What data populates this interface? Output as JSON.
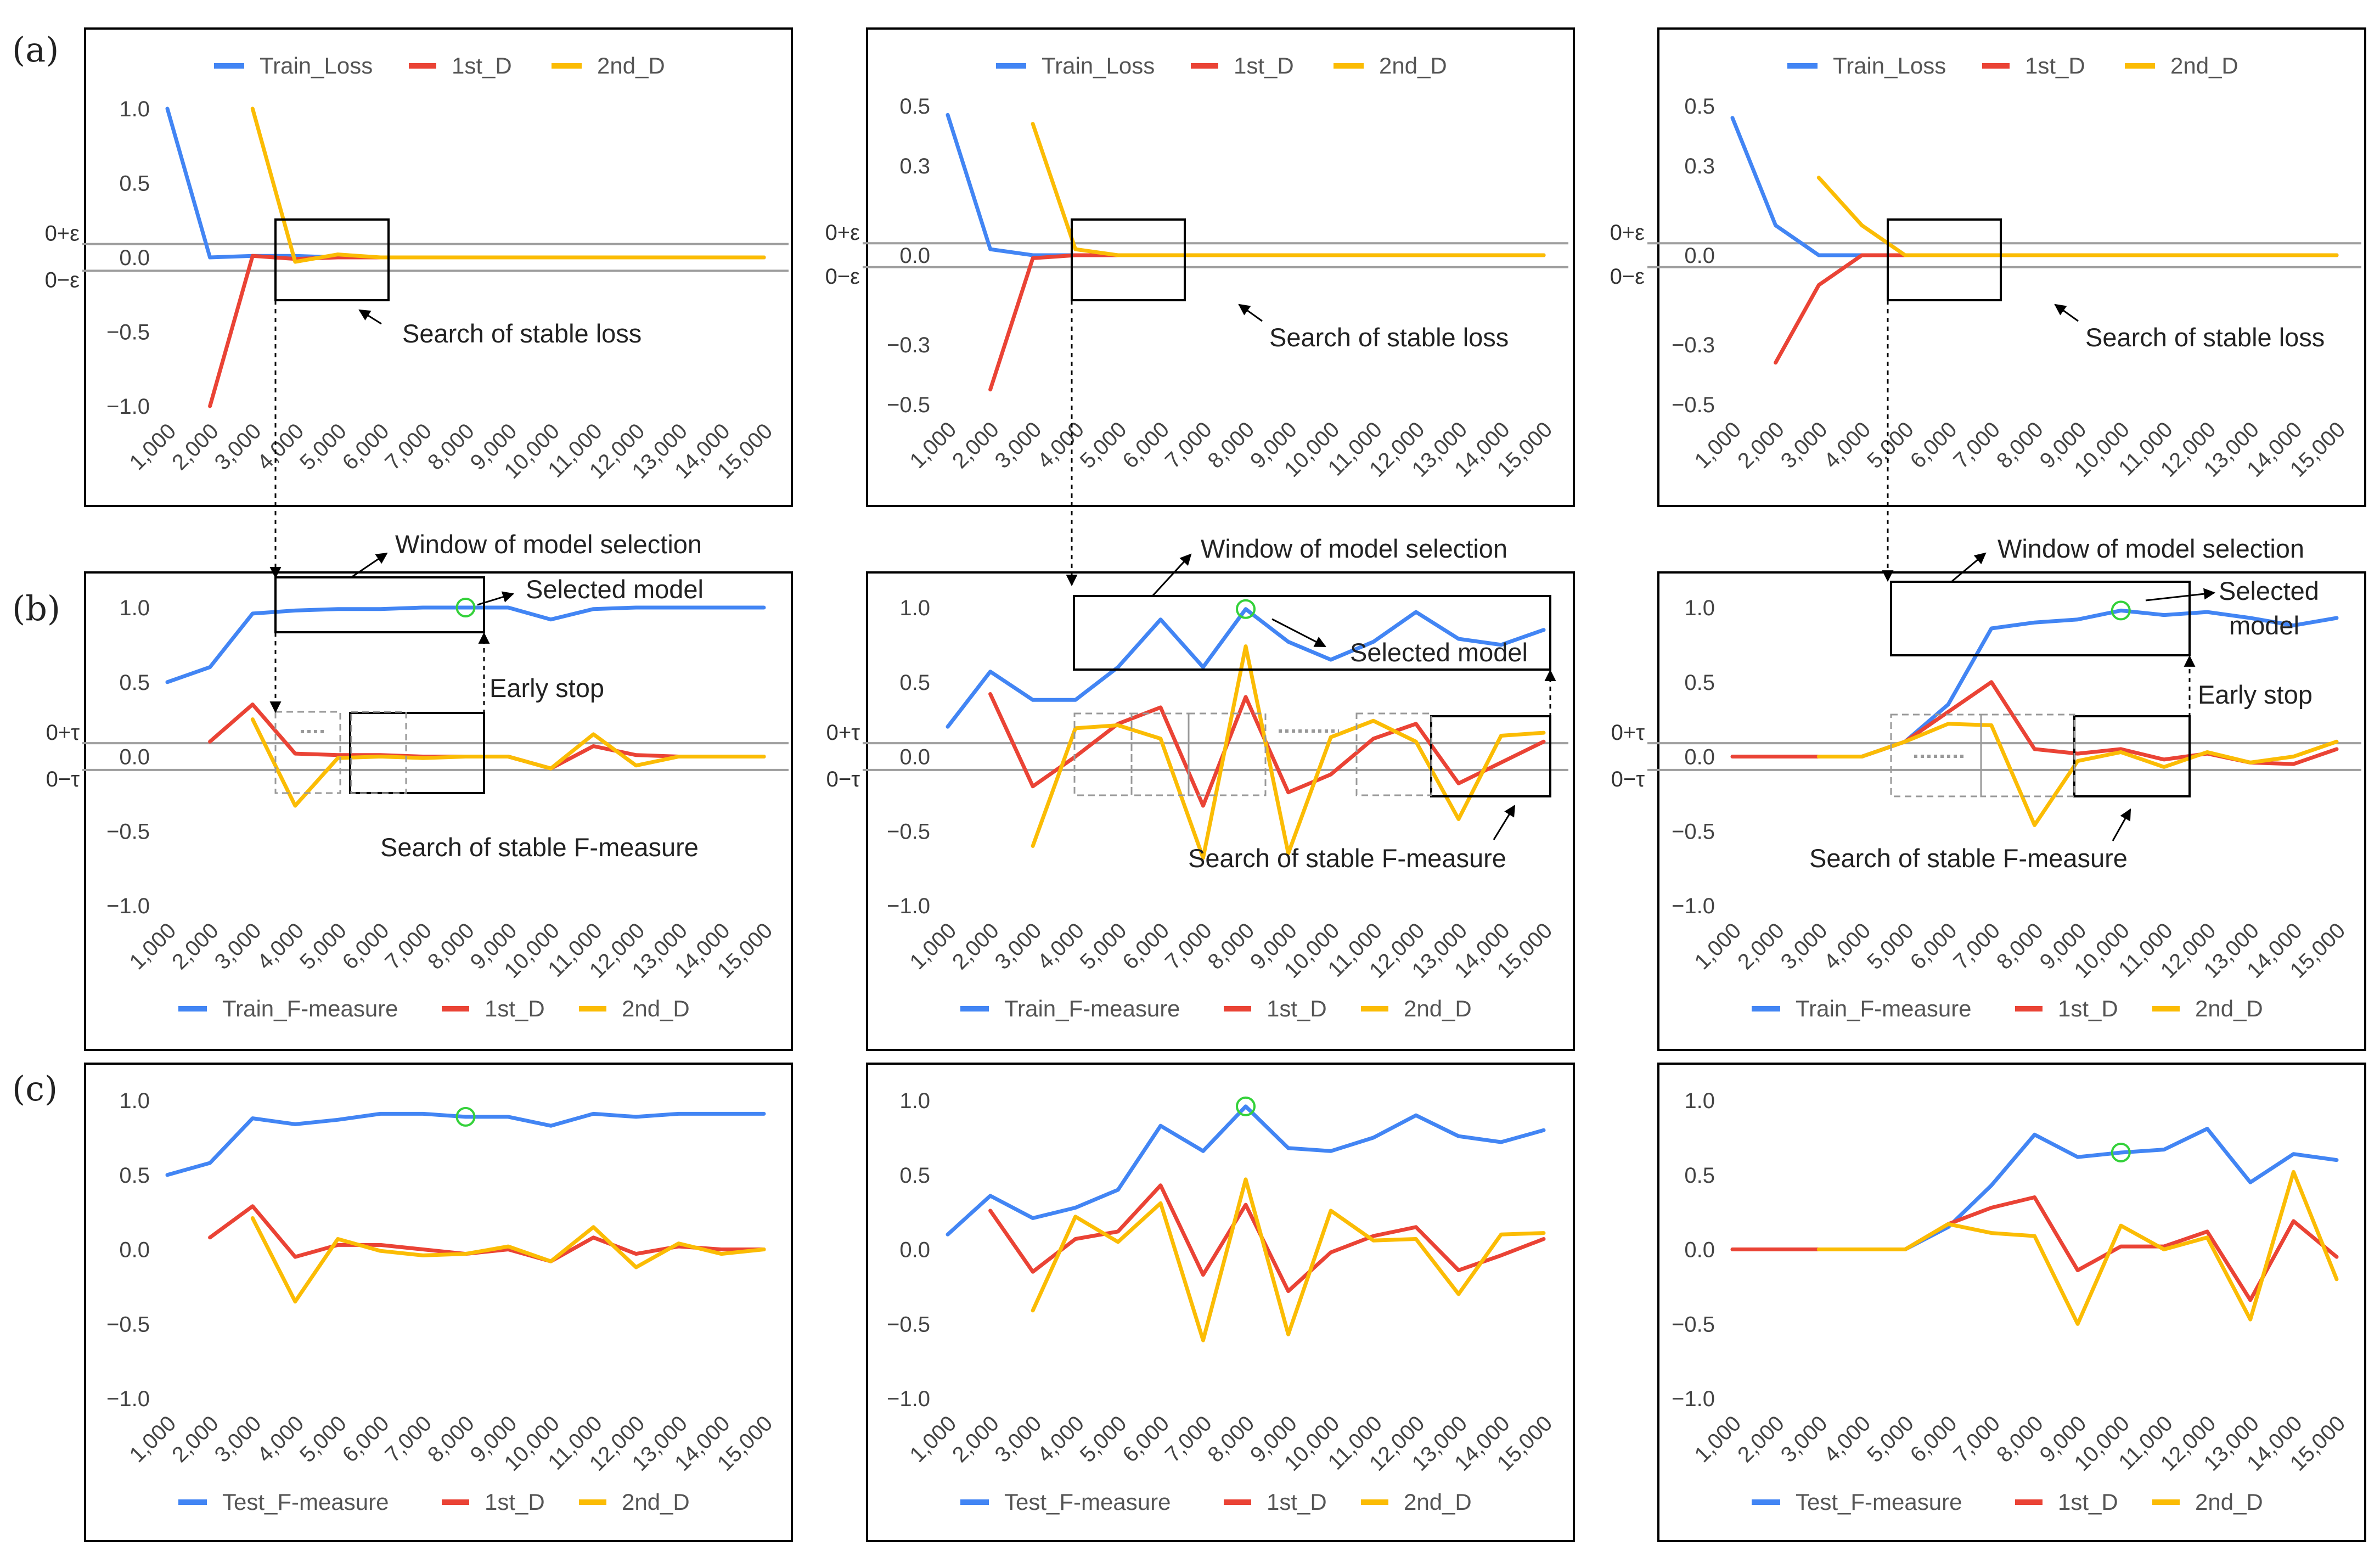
{
  "figure": {
    "colors": {
      "train": "#4285f4",
      "first": "#ea4335",
      "second": "#fbbc04",
      "threshold": "#9e9e9e",
      "selected": "#34d13a"
    },
    "x_categories": [
      "1,000",
      "2,000",
      "3,000",
      "4,000",
      "5,000",
      "6,000",
      "7,000",
      "8,000",
      "9,000",
      "10,000",
      "11,000",
      "12,000",
      "13,000",
      "14,000",
      "15,000"
    ],
    "row_labels": [
      "(a)",
      "(b)",
      "(c)"
    ],
    "threshold_labels": {
      "loss_upper": "0+ε",
      "loss_lower": "0−ε",
      "f_upper": "0+τ",
      "f_lower": "0−τ"
    },
    "annotations": {
      "search_stable_loss": "Search of stable loss",
      "window_model_selection": "Window of model selection",
      "selected_model": "Selected model",
      "early_stop": "Early stop",
      "search_stable_f": "Search of stable F-measure"
    }
  },
  "chart_data": [
    {
      "id": "a1",
      "type": "line",
      "row": "a",
      "col": 0,
      "y_ticks": [
        1.0,
        0.5,
        0.0,
        -0.5,
        -1.0
      ],
      "y_tick_labels": [
        "1.0",
        "0.5",
        "0.0",
        "−0.5",
        "−1.0"
      ],
      "ylim": [
        -1.0,
        1.0
      ],
      "threshold": 0.09,
      "legend": [
        "Train_Loss",
        "1st_D",
        "2nd_D"
      ],
      "legend_position": "top",
      "series": [
        {
          "name": "Train_Loss",
          "values": [
            1.0,
            0.0,
            0.01,
            0.01,
            0.0,
            0.0,
            0.0,
            0.0,
            0.0,
            0.0,
            0.0,
            0.0,
            0.0,
            0.0,
            0.0
          ]
        },
        {
          "name": "1st_D",
          "values": [
            null,
            -1.0,
            0.01,
            -0.01,
            0.0,
            0.0,
            0.0,
            0.0,
            0.0,
            0.0,
            0.0,
            0.0,
            0.0,
            0.0,
            0.0
          ]
        },
        {
          "name": "2nd_D",
          "values": [
            null,
            null,
            1.0,
            -0.03,
            0.02,
            0.0,
            0.0,
            0.0,
            0.0,
            0.0,
            0.0,
            0.0,
            0.0,
            0.0,
            0.0
          ]
        }
      ]
    },
    {
      "id": "a2",
      "type": "line",
      "row": "a",
      "col": 1,
      "y_ticks": [
        0.5,
        0.3,
        0.0,
        -0.3,
        -0.5
      ],
      "y_tick_labels": [
        "0.5",
        "0.3",
        "0.0",
        "−0.3",
        "−0.5"
      ],
      "ylim": [
        -0.5,
        0.5
      ],
      "threshold": 0.04,
      "legend": [
        "Train_Loss",
        "1st_D",
        "2nd_D"
      ],
      "legend_position": "top",
      "series": [
        {
          "name": "Train_Loss",
          "values": [
            0.47,
            0.02,
            0.0,
            0.0,
            0.0,
            0.0,
            0.0,
            0.0,
            0.0,
            0.0,
            0.0,
            0.0,
            0.0,
            0.0,
            0.0
          ]
        },
        {
          "name": "1st_D",
          "values": [
            null,
            -0.45,
            -0.01,
            0.0,
            0.0,
            0.0,
            0.0,
            0.0,
            0.0,
            0.0,
            0.0,
            0.0,
            0.0,
            0.0,
            0.0
          ]
        },
        {
          "name": "2nd_D",
          "values": [
            null,
            null,
            0.44,
            0.02,
            0.0,
            0.0,
            0.0,
            0.0,
            0.0,
            0.0,
            0.0,
            0.0,
            0.0,
            0.0,
            0.0
          ]
        }
      ]
    },
    {
      "id": "a3",
      "type": "line",
      "row": "a",
      "col": 2,
      "y_ticks": [
        0.5,
        0.3,
        0.0,
        -0.3,
        -0.5
      ],
      "y_tick_labels": [
        "0.5",
        "0.3",
        "0.0",
        "−0.3",
        "−0.5"
      ],
      "ylim": [
        -0.5,
        0.5
      ],
      "threshold": 0.04,
      "legend": [
        "Train_Loss",
        "1st_D",
        "2nd_D"
      ],
      "legend_position": "top",
      "series": [
        {
          "name": "Train_Loss",
          "values": [
            0.46,
            0.1,
            0.0,
            0.0,
            0.0,
            0.0,
            0.0,
            0.0,
            0.0,
            0.0,
            0.0,
            0.0,
            0.0,
            0.0,
            0.0
          ]
        },
        {
          "name": "1st_D",
          "values": [
            null,
            -0.36,
            -0.1,
            0.0,
            0.0,
            0.0,
            0.0,
            0.0,
            0.0,
            0.0,
            0.0,
            0.0,
            0.0,
            0.0,
            0.0
          ]
        },
        {
          "name": "2nd_D",
          "values": [
            null,
            null,
            0.26,
            0.1,
            0.0,
            0.0,
            0.0,
            0.0,
            0.0,
            0.0,
            0.0,
            0.0,
            0.0,
            0.0,
            0.0
          ]
        }
      ]
    },
    {
      "id": "b1",
      "type": "line",
      "row": "b",
      "col": 0,
      "y_ticks": [
        1.0,
        0.5,
        0.0,
        -0.5,
        -1.0
      ],
      "y_tick_labels": [
        "1.0",
        "0.5",
        "0.0",
        "−0.5",
        "−1.0"
      ],
      "ylim": [
        -1.0,
        1.0
      ],
      "threshold": 0.09,
      "legend": [
        "Train_F-measure",
        "1st_D",
        "2nd_D"
      ],
      "legend_position": "bottom",
      "selected_index": 7,
      "series": [
        {
          "name": "Train_F-measure",
          "values": [
            0.5,
            0.6,
            0.96,
            0.98,
            0.99,
            0.99,
            1.0,
            1.0,
            1.0,
            0.92,
            0.99,
            1.0,
            1.0,
            1.0,
            1.0
          ]
        },
        {
          "name": "1st_D",
          "values": [
            null,
            0.1,
            0.35,
            0.02,
            0.01,
            0.01,
            0.0,
            0.0,
            0.0,
            -0.08,
            0.07,
            0.01,
            0.0,
            0.0,
            0.0
          ]
        },
        {
          "name": "2nd_D",
          "values": [
            null,
            null,
            0.25,
            -0.33,
            -0.01,
            0.0,
            -0.01,
            0.0,
            0.0,
            -0.08,
            0.15,
            -0.06,
            0.0,
            0.0,
            0.0
          ]
        }
      ]
    },
    {
      "id": "b2",
      "type": "line",
      "row": "b",
      "col": 1,
      "y_ticks": [
        1.0,
        0.5,
        0.0,
        -0.5,
        -1.0
      ],
      "y_tick_labels": [
        "1.0",
        "0.5",
        "0.0",
        "−0.5",
        "−1.0"
      ],
      "ylim": [
        -1.0,
        1.0
      ],
      "threshold": 0.09,
      "legend": [
        "Train_F-measure",
        "1st_D",
        "2nd_D"
      ],
      "legend_position": "bottom",
      "selected_index": 7,
      "series": [
        {
          "name": "Train_F-measure",
          "values": [
            0.2,
            0.57,
            0.38,
            0.38,
            0.6,
            0.92,
            0.6,
            0.99,
            0.77,
            0.65,
            0.77,
            0.97,
            0.79,
            0.75,
            0.85
          ]
        },
        {
          "name": "1st_D",
          "values": [
            null,
            0.42,
            -0.2,
            0.0,
            0.22,
            0.33,
            -0.33,
            0.4,
            -0.24,
            -0.12,
            0.12,
            0.22,
            -0.18,
            -0.04,
            0.1
          ]
        },
        {
          "name": "2nd_D",
          "values": [
            null,
            null,
            -0.6,
            0.19,
            0.21,
            0.12,
            -0.68,
            0.74,
            -0.65,
            0.13,
            0.24,
            0.1,
            -0.42,
            0.14,
            0.16
          ]
        }
      ]
    },
    {
      "id": "b3",
      "type": "line",
      "row": "b",
      "col": 2,
      "y_ticks": [
        1.0,
        0.5,
        0.0,
        -0.5,
        -1.0
      ],
      "y_tick_labels": [
        "1.0",
        "0.5",
        "0.0",
        "−0.5",
        "−1.0"
      ],
      "ylim": [
        -1.0,
        1.0
      ],
      "threshold": 0.09,
      "legend": [
        "Train_F-measure",
        "1st_D",
        "2nd_D"
      ],
      "legend_position": "bottom",
      "selected_index": 9,
      "series": [
        {
          "name": "Train_F-measure",
          "values": [
            0.0,
            0.0,
            0.0,
            0.0,
            0.1,
            0.35,
            0.86,
            0.9,
            0.92,
            0.98,
            0.95,
            0.97,
            0.93,
            0.88,
            0.93
          ]
        },
        {
          "name": "1st_D",
          "values": [
            0.0,
            0.0,
            0.0,
            0.0,
            0.1,
            0.3,
            0.5,
            0.05,
            0.02,
            0.05,
            -0.02,
            0.02,
            -0.04,
            -0.05,
            0.05
          ]
        },
        {
          "name": "2nd_D",
          "values": [
            null,
            null,
            0.0,
            0.0,
            0.1,
            0.22,
            0.21,
            -0.46,
            -0.03,
            0.03,
            -0.07,
            0.03,
            -0.04,
            0.0,
            0.1
          ]
        }
      ]
    },
    {
      "id": "c1",
      "type": "line",
      "row": "c",
      "col": 0,
      "y_ticks": [
        1.0,
        0.5,
        0.0,
        -0.5,
        -1.0
      ],
      "y_tick_labels": [
        "1.0",
        "0.5",
        "0.0",
        "−0.5",
        "−1.0"
      ],
      "ylim": [
        -1.0,
        1.0
      ],
      "threshold": null,
      "legend": [
        "Test_F-measure",
        "1st_D",
        "2nd_D"
      ],
      "legend_position": "bottom",
      "selected_index": 7,
      "series": [
        {
          "name": "Test_F-measure",
          "values": [
            0.5,
            0.58,
            0.88,
            0.84,
            0.87,
            0.91,
            0.91,
            0.89,
            0.89,
            0.83,
            0.91,
            0.89,
            0.91,
            0.91,
            0.91
          ]
        },
        {
          "name": "1st_D",
          "values": [
            null,
            0.08,
            0.29,
            -0.05,
            0.03,
            0.03,
            0.0,
            -0.03,
            0.0,
            -0.08,
            0.08,
            -0.03,
            0.02,
            0.0,
            0.0
          ]
        },
        {
          "name": "2nd_D",
          "values": [
            null,
            null,
            0.21,
            -0.35,
            0.07,
            -0.01,
            -0.04,
            -0.03,
            0.02,
            -0.08,
            0.15,
            -0.12,
            0.04,
            -0.03,
            0.0
          ]
        }
      ]
    },
    {
      "id": "c2",
      "type": "line",
      "row": "c",
      "col": 1,
      "y_ticks": [
        1.0,
        0.5,
        0.0,
        -0.5,
        -1.0
      ],
      "y_tick_labels": [
        "1.0",
        "0.5",
        "0.0",
        "−0.5",
        "−1.0"
      ],
      "ylim": [
        -1.0,
        1.0
      ],
      "threshold": null,
      "legend": [
        "Test_F-measure",
        "1st_D",
        "2nd_D"
      ],
      "legend_position": "bottom",
      "selected_index": 7,
      "series": [
        {
          "name": "Test_F-measure",
          "values": [
            0.1,
            0.36,
            0.21,
            0.28,
            0.4,
            0.83,
            0.66,
            0.96,
            0.68,
            0.66,
            0.75,
            0.9,
            0.76,
            0.72,
            0.8
          ]
        },
        {
          "name": "1st_D",
          "values": [
            null,
            0.26,
            -0.15,
            0.07,
            0.12,
            0.43,
            -0.17,
            0.3,
            -0.28,
            -0.02,
            0.09,
            0.15,
            -0.14,
            -0.04,
            0.07
          ]
        },
        {
          "name": "2nd_D",
          "values": [
            null,
            null,
            -0.41,
            0.22,
            0.05,
            0.31,
            -0.61,
            0.47,
            -0.57,
            0.26,
            0.06,
            0.07,
            -0.3,
            0.1,
            0.11
          ]
        }
      ]
    },
    {
      "id": "c3",
      "type": "line",
      "row": "c",
      "col": 2,
      "y_ticks": [
        1.0,
        0.5,
        0.0,
        -0.5,
        -1.0
      ],
      "y_tick_labels": [
        "1.0",
        "0.5",
        "0.0",
        "−0.5",
        "−1.0"
      ],
      "ylim": [
        -1.0,
        1.0
      ],
      "threshold": null,
      "legend": [
        "Test_F-measure",
        "1st_D",
        "2nd_D"
      ],
      "legend_position": "bottom",
      "selected_index": 9,
      "series": [
        {
          "name": "Test_F-measure",
          "values": [
            0.0,
            0.0,
            0.0,
            0.0,
            0.0,
            0.15,
            0.43,
            0.77,
            0.62,
            0.65,
            0.67,
            0.81,
            0.45,
            0.64,
            0.6
          ]
        },
        {
          "name": "1st_D",
          "values": [
            0.0,
            0.0,
            0.0,
            0.0,
            0.0,
            0.17,
            0.28,
            0.35,
            -0.14,
            0.02,
            0.02,
            0.12,
            -0.34,
            0.19,
            -0.05
          ]
        },
        {
          "name": "2nd_D",
          "values": [
            null,
            null,
            0.0,
            0.0,
            0.0,
            0.17,
            0.11,
            0.09,
            -0.5,
            0.16,
            0.0,
            0.08,
            -0.47,
            0.52,
            -0.2
          ]
        }
      ]
    }
  ]
}
